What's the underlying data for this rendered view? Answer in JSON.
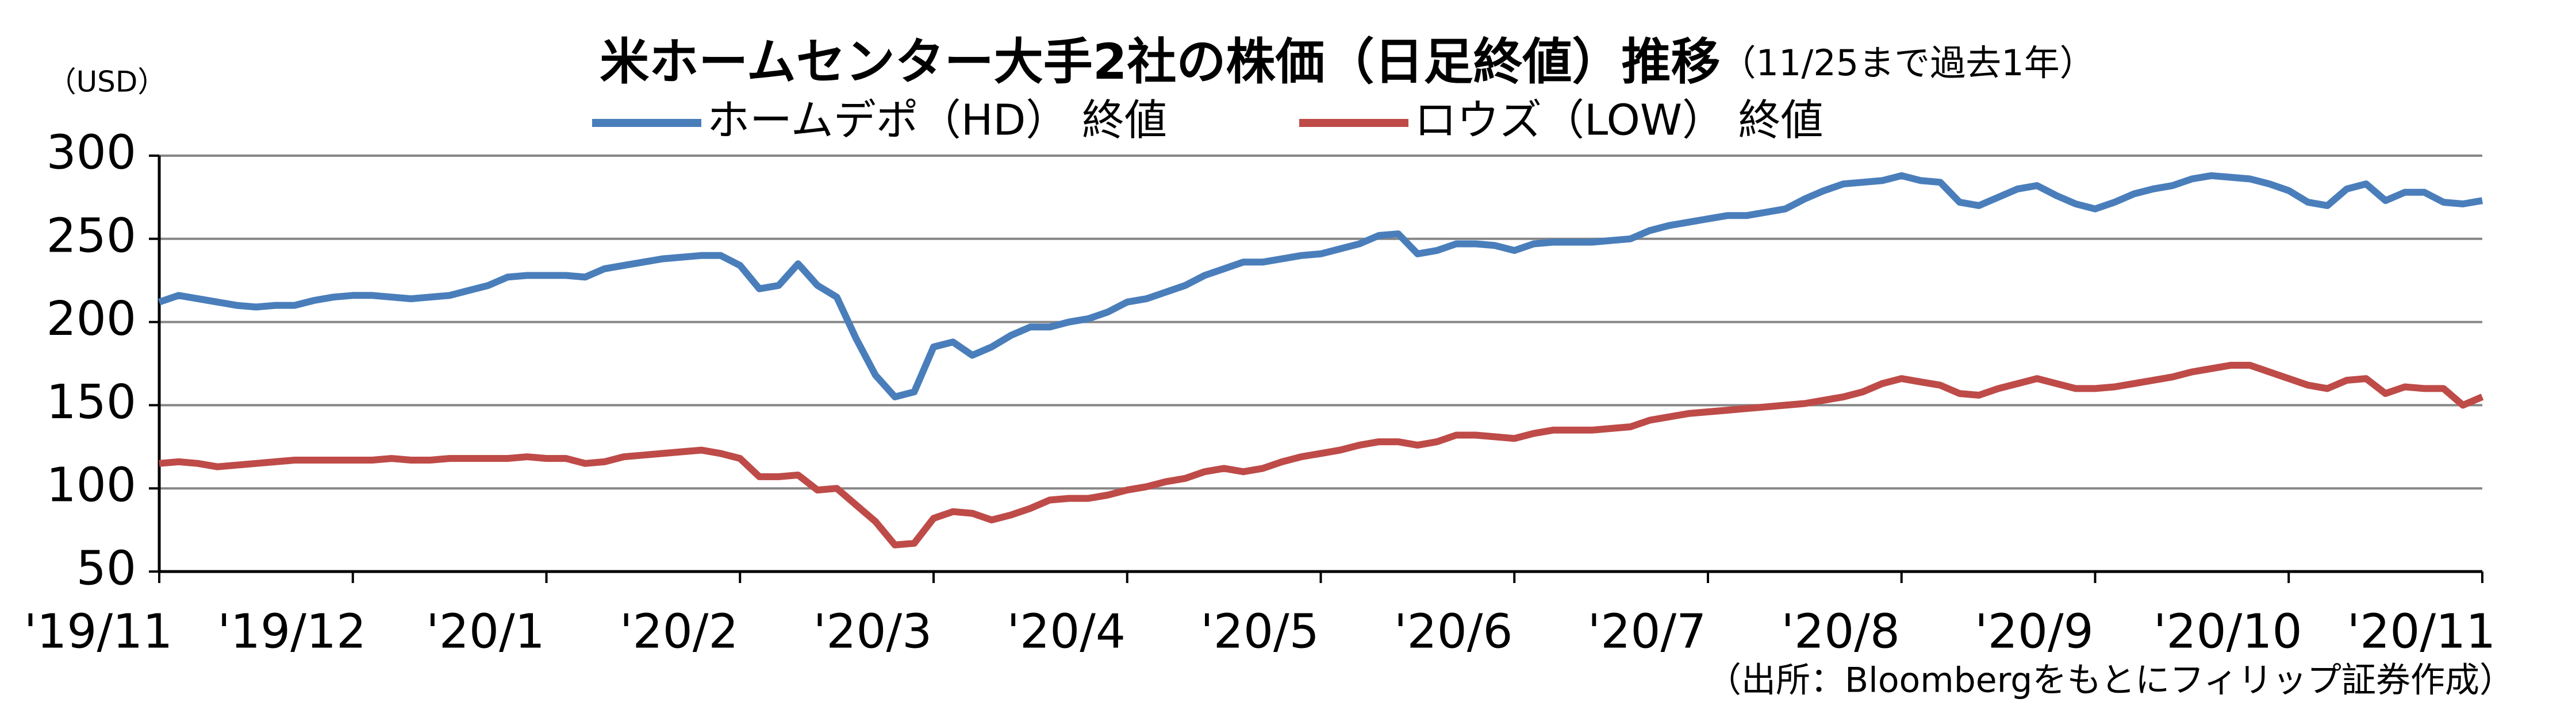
{
  "chart_data": {
    "type": "line",
    "title": "米ホームセンター大手2社の株価（日足終値）推移",
    "subtitle": "（11/25まで過去1年）",
    "y_axis_label": "（USD）",
    "source": "（出所：Bloombergをもとにフィリップ証券作成）",
    "ylim": [
      50,
      300
    ],
    "yticks": [
      50,
      100,
      150,
      200,
      250,
      300
    ],
    "grid": true,
    "categories": [
      "'19/11",
      null,
      null,
      null,
      null,
      null,
      null,
      null,
      null,
      null,
      "'19/12",
      null,
      null,
      null,
      null,
      null,
      null,
      null,
      null,
      null,
      "'20/1",
      null,
      null,
      null,
      null,
      null,
      null,
      null,
      null,
      null,
      "'20/2",
      null,
      null,
      null,
      null,
      null,
      null,
      null,
      null,
      null,
      "'20/3",
      null,
      null,
      null,
      null,
      null,
      null,
      null,
      null,
      null,
      "'20/4",
      null,
      null,
      null,
      null,
      null,
      null,
      null,
      null,
      null,
      "'20/5",
      null,
      null,
      null,
      null,
      null,
      null,
      null,
      null,
      null,
      "'20/6",
      null,
      null,
      null,
      null,
      null,
      null,
      null,
      null,
      null,
      "'20/7",
      null,
      null,
      null,
      null,
      null,
      null,
      null,
      null,
      null,
      "'20/8",
      null,
      null,
      null,
      null,
      null,
      null,
      null,
      null,
      null,
      "'20/9",
      null,
      null,
      null,
      null,
      null,
      null,
      null,
      null,
      null,
      "'20/10",
      null,
      null,
      null,
      null,
      null,
      null,
      null,
      null,
      null,
      "'20/11"
    ],
    "series": [
      {
        "name": "ホームデポ（HD） 終値",
        "color": "#4a7ebb",
        "values": [
          212,
          216,
          214,
          212,
          210,
          209,
          210,
          210,
          213,
          215,
          216,
          216,
          215,
          214,
          215,
          216,
          219,
          222,
          227,
          228,
          228,
          228,
          227,
          232,
          234,
          236,
          238,
          239,
          240,
          240,
          234,
          220,
          222,
          235,
          222,
          215,
          190,
          168,
          155,
          158,
          185,
          188,
          180,
          185,
          192,
          197,
          197,
          200,
          202,
          206,
          212,
          214,
          218,
          222,
          228,
          232,
          236,
          236,
          238,
          240,
          241,
          244,
          247,
          252,
          253,
          241,
          243,
          247,
          247,
          246,
          243,
          247,
          248,
          248,
          248,
          249,
          250,
          255,
          258,
          260,
          262,
          264,
          264,
          266,
          268,
          274,
          279,
          283,
          284,
          285,
          288,
          285,
          284,
          272,
          270,
          275,
          280,
          282,
          276,
          271,
          268,
          272,
          277,
          280,
          282,
          286,
          288,
          287,
          286,
          283,
          279,
          272,
          270,
          280,
          283,
          273,
          278,
          278,
          272,
          271,
          273
        ]
      },
      {
        "name": "ロウズ（LOW） 終値",
        "color": "#be4b48",
        "values": [
          115,
          116,
          115,
          113,
          114,
          115,
          116,
          117,
          117,
          117,
          117,
          117,
          118,
          117,
          117,
          118,
          118,
          118,
          118,
          119,
          118,
          118,
          115,
          116,
          119,
          120,
          121,
          122,
          123,
          121,
          118,
          107,
          107,
          108,
          99,
          100,
          90,
          80,
          66,
          67,
          82,
          86,
          85,
          81,
          84,
          88,
          93,
          94,
          94,
          96,
          99,
          101,
          104,
          106,
          110,
          112,
          110,
          112,
          116,
          119,
          121,
          123,
          126,
          128,
          128,
          126,
          128,
          132,
          132,
          131,
          130,
          133,
          135,
          135,
          135,
          136,
          137,
          141,
          143,
          145,
          146,
          147,
          148,
          149,
          150,
          151,
          153,
          155,
          158,
          163,
          166,
          164,
          162,
          157,
          156,
          160,
          163,
          166,
          163,
          160,
          160,
          161,
          163,
          165,
          167,
          170,
          172,
          174,
          174,
          170,
          166,
          162,
          160,
          165,
          166,
          157,
          161,
          160,
          160,
          150,
          155
        ]
      }
    ]
  }
}
